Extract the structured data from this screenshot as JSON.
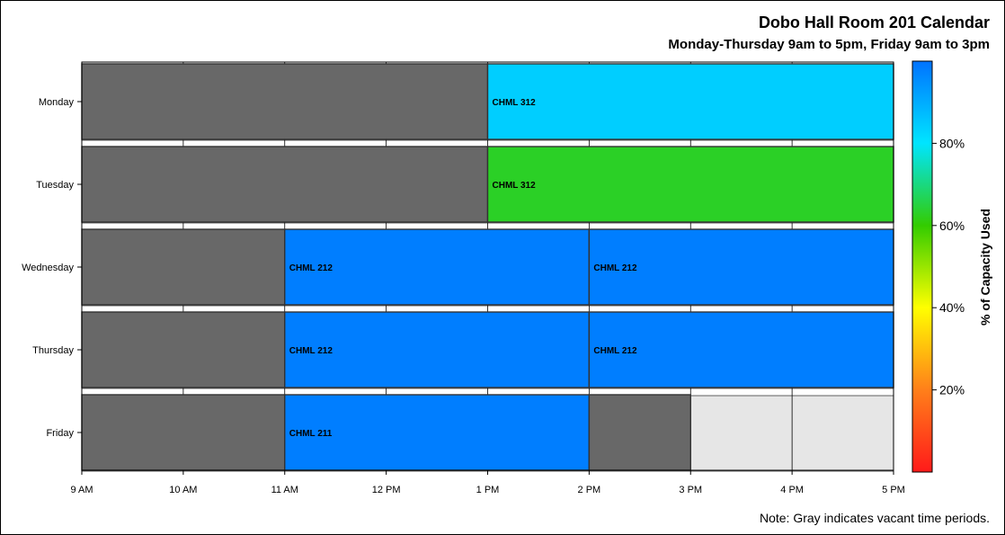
{
  "header": {
    "title": "Dobo Hall Room 201 Calendar",
    "subtitle": "Monday-Thursday 9am to 5pm, Friday 9am to 3pm",
    "footnote": "Note: Gray indicates vacant time periods."
  },
  "chart_data": {
    "type": "bar",
    "orientation": "horizontal",
    "xlabel": "",
    "ylabel": "",
    "x_range": [
      9,
      17
    ],
    "x_ticks": [
      {
        "value": 9,
        "label": "9 AM"
      },
      {
        "value": 10,
        "label": "10 AM"
      },
      {
        "value": 11,
        "label": "11 AM"
      },
      {
        "value": 12,
        "label": "12 PM"
      },
      {
        "value": 13,
        "label": "1 PM"
      },
      {
        "value": 14,
        "label": "2 PM"
      },
      {
        "value": 15,
        "label": "3 PM"
      },
      {
        "value": 16,
        "label": "4 PM"
      },
      {
        "value": 17,
        "label": "5 PM"
      }
    ],
    "categories": [
      "Monday",
      "Tuesday",
      "Wednesday",
      "Thursday",
      "Friday"
    ],
    "segments": [
      {
        "day": "Monday",
        "start": 9,
        "end": 13,
        "label": "",
        "vacant": true
      },
      {
        "day": "Monday",
        "start": 13,
        "end": 17,
        "label": "CHML 312",
        "capacity_pct": 84
      },
      {
        "day": "Tuesday",
        "start": 9,
        "end": 13,
        "label": "",
        "vacant": true
      },
      {
        "day": "Tuesday",
        "start": 13,
        "end": 17,
        "label": "CHML 312",
        "capacity_pct": 63
      },
      {
        "day": "Wednesday",
        "start": 9,
        "end": 11,
        "label": "",
        "vacant": true
      },
      {
        "day": "Wednesday",
        "start": 11,
        "end": 14,
        "label": "CHML 212",
        "capacity_pct": 98
      },
      {
        "day": "Wednesday",
        "start": 14,
        "end": 17,
        "label": "CHML 212",
        "capacity_pct": 98
      },
      {
        "day": "Thursday",
        "start": 9,
        "end": 11,
        "label": "",
        "vacant": true
      },
      {
        "day": "Thursday",
        "start": 11,
        "end": 14,
        "label": "CHML 212",
        "capacity_pct": 98
      },
      {
        "day": "Thursday",
        "start": 14,
        "end": 17,
        "label": "CHML 212",
        "capacity_pct": 98
      },
      {
        "day": "Friday",
        "start": 9,
        "end": 11,
        "label": "",
        "vacant": true
      },
      {
        "day": "Friday",
        "start": 11,
        "end": 14,
        "label": "CHML 211",
        "capacity_pct": 98
      },
      {
        "day": "Friday",
        "start": 14,
        "end": 15,
        "label": "",
        "vacant": true
      }
    ],
    "colors": {
      "vacant": "#686868",
      "closed_background": "#e8e8e8",
      "row_background": "#e6e6e6",
      "gradient": [
        "#ff1a1a",
        "#ff7f1a",
        "#ffff00",
        "#33cc00",
        "#00e5ff",
        "#0073ff"
      ]
    },
    "colorbar": {
      "title": "% of Capacity Used",
      "range": [
        0,
        100
      ],
      "ticks": [
        {
          "value": 20,
          "label": "20%"
        },
        {
          "value": 40,
          "label": "40%"
        },
        {
          "value": 60,
          "label": "60%"
        },
        {
          "value": 80,
          "label": "80%"
        }
      ],
      "position": "right"
    },
    "grid": true,
    "legend": "right"
  }
}
